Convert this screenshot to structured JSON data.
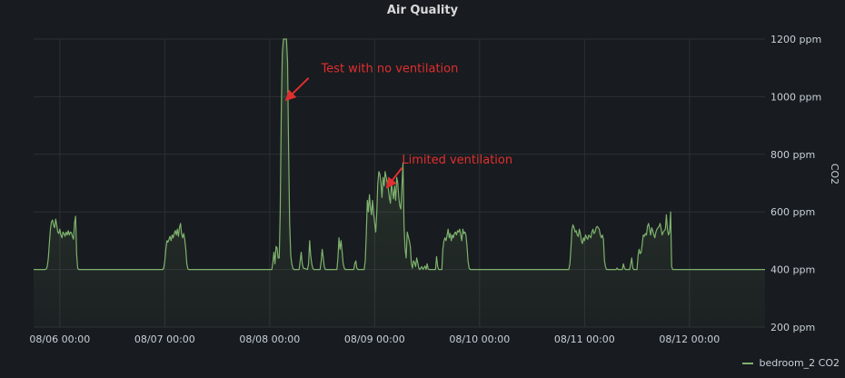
{
  "chart_data": {
    "type": "area",
    "title": "Air Quality",
    "ylabel": "CO2",
    "ylim": [
      200,
      1200
    ],
    "yticks": [
      "200 ppm",
      "400 ppm",
      "600 ppm",
      "800 ppm",
      "1000 ppm",
      "1200 ppm"
    ],
    "ytick_values": [
      200,
      400,
      600,
      800,
      1000,
      1200
    ],
    "xticks": [
      "08/06 00:00",
      "08/07 00:00",
      "08/08 00:00",
      "08/09 00:00",
      "08/10 00:00",
      "08/11 00:00",
      "08/12 00:00"
    ],
    "xtick_days": [
      0,
      1,
      2,
      3,
      4,
      5,
      6
    ],
    "xlim_days": [
      -0.25,
      6.72
    ],
    "grid": true,
    "legend_placement": "bottom-right",
    "series": [
      {
        "name": "bedroom_2 CO2",
        "color": "#7eb26d",
        "points": [
          [
            -0.25,
            400
          ],
          [
            -0.14,
            400
          ],
          [
            -0.13,
            402
          ],
          [
            -0.12,
            410
          ],
          [
            -0.11,
            440
          ],
          [
            -0.1,
            490
          ],
          [
            -0.09,
            540
          ],
          [
            -0.08,
            565
          ],
          [
            -0.07,
            572
          ],
          [
            -0.06,
            555
          ],
          [
            -0.05,
            545
          ],
          [
            -0.04,
            575
          ],
          [
            -0.03,
            555
          ],
          [
            -0.02,
            530
          ],
          [
            -0.01,
            525
          ],
          [
            0.0,
            540
          ],
          [
            0.01,
            520
          ],
          [
            0.02,
            510
          ],
          [
            0.03,
            530
          ],
          [
            0.04,
            525
          ],
          [
            0.05,
            515
          ],
          [
            0.06,
            530
          ],
          [
            0.07,
            520
          ],
          [
            0.08,
            535
          ],
          [
            0.09,
            520
          ],
          [
            0.1,
            530
          ],
          [
            0.11,
            528
          ],
          [
            0.12,
            515
          ],
          [
            0.13,
            505
          ],
          [
            0.14,
            560
          ],
          [
            0.15,
            585
          ],
          [
            0.16,
            450
          ],
          [
            0.17,
            405
          ],
          [
            0.18,
            400
          ],
          [
            0.98,
            400
          ],
          [
            0.99,
            405
          ],
          [
            1.0,
            430
          ],
          [
            1.01,
            470
          ],
          [
            1.02,
            500
          ],
          [
            1.03,
            495
          ],
          [
            1.04,
            505
          ],
          [
            1.05,
            515
          ],
          [
            1.06,
            500
          ],
          [
            1.07,
            520
          ],
          [
            1.08,
            510
          ],
          [
            1.09,
            525
          ],
          [
            1.1,
            535
          ],
          [
            1.11,
            520
          ],
          [
            1.12,
            540
          ],
          [
            1.13,
            515
          ],
          [
            1.14,
            545
          ],
          [
            1.15,
            560
          ],
          [
            1.16,
            525
          ],
          [
            1.17,
            510
          ],
          [
            1.18,
            525
          ],
          [
            1.19,
            505
          ],
          [
            1.2,
            470
          ],
          [
            1.21,
            420
          ],
          [
            1.22,
            402
          ],
          [
            1.23,
            400
          ],
          [
            2.02,
            400
          ],
          [
            2.03,
            425
          ],
          [
            2.04,
            460
          ],
          [
            2.05,
            420
          ],
          [
            2.06,
            480
          ],
          [
            2.07,
            475
          ],
          [
            2.08,
            440
          ],
          [
            2.09,
            440
          ],
          [
            2.1,
            600
          ],
          [
            2.11,
            950
          ],
          [
            2.12,
            1150
          ],
          [
            2.13,
            1250
          ],
          [
            2.16,
            1250
          ],
          [
            2.17,
            1120
          ],
          [
            2.18,
            800
          ],
          [
            2.19,
            560
          ],
          [
            2.2,
            450
          ],
          [
            2.21,
            420
          ],
          [
            2.22,
            405
          ],
          [
            2.23,
            400
          ],
          [
            2.28,
            400
          ],
          [
            2.29,
            430
          ],
          [
            2.3,
            460
          ],
          [
            2.31,
            420
          ],
          [
            2.32,
            405
          ],
          [
            2.36,
            400
          ],
          [
            2.37,
            420
          ],
          [
            2.38,
            500
          ],
          [
            2.39,
            450
          ],
          [
            2.4,
            420
          ],
          [
            2.41,
            405
          ],
          [
            2.42,
            400
          ],
          [
            2.48,
            400
          ],
          [
            2.49,
            430
          ],
          [
            2.5,
            470
          ],
          [
            2.51,
            440
          ],
          [
            2.52,
            410
          ],
          [
            2.53,
            400
          ],
          [
            2.64,
            400
          ],
          [
            2.65,
            440
          ],
          [
            2.66,
            510
          ],
          [
            2.67,
            470
          ],
          [
            2.68,
            500
          ],
          [
            2.69,
            460
          ],
          [
            2.7,
            420
          ],
          [
            2.71,
            405
          ],
          [
            2.72,
            400
          ],
          [
            2.8,
            400
          ],
          [
            2.81,
            420
          ],
          [
            2.82,
            430
          ],
          [
            2.83,
            405
          ],
          [
            2.84,
            400
          ],
          [
            2.9,
            400
          ],
          [
            2.91,
            430
          ],
          [
            2.92,
            520
          ],
          [
            2.93,
            640
          ],
          [
            2.94,
            600
          ],
          [
            2.95,
            660
          ],
          [
            2.96,
            615
          ],
          [
            2.97,
            590
          ],
          [
            2.98,
            640
          ],
          [
            2.99,
            595
          ],
          [
            3.0,
            560
          ],
          [
            3.01,
            530
          ],
          [
            3.02,
            600
          ],
          [
            3.03,
            700
          ],
          [
            3.04,
            740
          ],
          [
            3.05,
            730
          ],
          [
            3.06,
            700
          ],
          [
            3.07,
            650
          ],
          [
            3.08,
            720
          ],
          [
            3.09,
            690
          ],
          [
            3.1,
            740
          ],
          [
            3.11,
            720
          ],
          [
            3.12,
            700
          ],
          [
            3.13,
            680
          ],
          [
            3.14,
            650
          ],
          [
            3.15,
            630
          ],
          [
            3.16,
            700
          ],
          [
            3.17,
            670
          ],
          [
            3.18,
            645
          ],
          [
            3.19,
            690
          ],
          [
            3.2,
            640
          ],
          [
            3.21,
            720
          ],
          [
            3.22,
            700
          ],
          [
            3.23,
            650
          ],
          [
            3.24,
            620
          ],
          [
            3.25,
            610
          ],
          [
            3.26,
            690
          ],
          [
            3.27,
            770
          ],
          [
            3.28,
            550
          ],
          [
            3.29,
            470
          ],
          [
            3.3,
            440
          ],
          [
            3.31,
            530
          ],
          [
            3.32,
            515
          ],
          [
            3.33,
            500
          ],
          [
            3.34,
            480
          ],
          [
            3.35,
            420
          ],
          [
            3.36,
            405
          ],
          [
            3.37,
            430
          ],
          [
            3.38,
            425
          ],
          [
            3.39,
            410
          ],
          [
            3.4,
            440
          ],
          [
            3.41,
            425
          ],
          [
            3.42,
            405
          ],
          [
            3.43,
            400
          ],
          [
            3.45,
            410
          ],
          [
            3.46,
            400
          ],
          [
            3.48,
            412
          ],
          [
            3.49,
            400
          ],
          [
            3.5,
            420
          ],
          [
            3.51,
            402
          ],
          [
            3.52,
            400
          ],
          [
            3.58,
            400
          ],
          [
            3.59,
            445
          ],
          [
            3.6,
            410
          ],
          [
            3.61,
            400
          ],
          [
            3.64,
            400
          ],
          [
            3.65,
            470
          ],
          [
            3.66,
            500
          ],
          [
            3.67,
            510
          ],
          [
            3.68,
            500
          ],
          [
            3.69,
            520
          ],
          [
            3.7,
            540
          ],
          [
            3.71,
            510
          ],
          [
            3.72,
            525
          ],
          [
            3.73,
            500
          ],
          [
            3.74,
            520
          ],
          [
            3.75,
            510
          ],
          [
            3.76,
            525
          ],
          [
            3.77,
            530
          ],
          [
            3.78,
            520
          ],
          [
            3.79,
            535
          ],
          [
            3.8,
            530
          ],
          [
            3.81,
            540
          ],
          [
            3.82,
            520
          ],
          [
            3.83,
            500
          ],
          [
            3.84,
            540
          ],
          [
            3.85,
            525
          ],
          [
            3.86,
            530
          ],
          [
            3.87,
            520
          ],
          [
            3.88,
            480
          ],
          [
            3.89,
            430
          ],
          [
            3.9,
            405
          ],
          [
            3.91,
            400
          ],
          [
            4.85,
            400
          ],
          [
            4.86,
            420
          ],
          [
            4.87,
            470
          ],
          [
            4.88,
            540
          ],
          [
            4.89,
            555
          ],
          [
            4.9,
            545
          ],
          [
            4.91,
            530
          ],
          [
            4.92,
            535
          ],
          [
            4.93,
            520
          ],
          [
            4.94,
            515
          ],
          [
            4.95,
            540
          ],
          [
            4.96,
            525
          ],
          [
            4.97,
            500
          ],
          [
            4.98,
            490
          ],
          [
            4.99,
            510
          ],
          [
            5.0,
            500
          ],
          [
            5.01,
            520
          ],
          [
            5.02,
            510
          ],
          [
            5.03,
            505
          ],
          [
            5.04,
            520
          ],
          [
            5.05,
            515
          ],
          [
            5.06,
            510
          ],
          [
            5.07,
            530
          ],
          [
            5.08,
            540
          ],
          [
            5.09,
            525
          ],
          [
            5.1,
            530
          ],
          [
            5.11,
            545
          ],
          [
            5.12,
            550
          ],
          [
            5.13,
            545
          ],
          [
            5.14,
            540
          ],
          [
            5.15,
            520
          ],
          [
            5.16,
            510
          ],
          [
            5.17,
            520
          ],
          [
            5.18,
            505
          ],
          [
            5.19,
            430
          ],
          [
            5.2,
            410
          ],
          [
            5.21,
            400
          ],
          [
            5.3,
            400
          ],
          [
            5.31,
            405
          ],
          [
            5.32,
            400
          ],
          [
            5.36,
            400
          ],
          [
            5.37,
            420
          ],
          [
            5.38,
            405
          ],
          [
            5.39,
            400
          ],
          [
            5.43,
            400
          ],
          [
            5.44,
            420
          ],
          [
            5.45,
            440
          ],
          [
            5.46,
            405
          ],
          [
            5.47,
            400
          ],
          [
            5.5,
            400
          ],
          [
            5.51,
            450
          ],
          [
            5.52,
            470
          ],
          [
            5.53,
            455
          ],
          [
            5.54,
            460
          ],
          [
            5.55,
            490
          ],
          [
            5.56,
            520
          ],
          [
            5.57,
            515
          ],
          [
            5.58,
            525
          ],
          [
            5.59,
            520
          ],
          [
            5.6,
            550
          ],
          [
            5.61,
            560
          ],
          [
            5.62,
            540
          ],
          [
            5.63,
            520
          ],
          [
            5.64,
            545
          ],
          [
            5.65,
            535
          ],
          [
            5.66,
            520
          ],
          [
            5.67,
            510
          ],
          [
            5.68,
            530
          ],
          [
            5.69,
            540
          ],
          [
            5.7,
            545
          ],
          [
            5.71,
            550
          ],
          [
            5.72,
            560
          ],
          [
            5.73,
            540
          ],
          [
            5.74,
            520
          ],
          [
            5.75,
            530
          ],
          [
            5.76,
            535
          ],
          [
            5.77,
            540
          ],
          [
            5.78,
            590
          ],
          [
            5.79,
            540
          ],
          [
            5.8,
            520
          ],
          [
            5.81,
            530
          ],
          [
            5.82,
            600
          ],
          [
            5.83,
            410
          ],
          [
            5.84,
            400
          ],
          [
            6.72,
            400
          ]
        ]
      }
    ],
    "annotations": [
      {
        "text": "Test with no ventilation",
        "x": 2.49,
        "y": 1085,
        "arrow_from": [
          2.37,
          1065
        ],
        "arrow_to": [
          2.16,
          990
        ]
      },
      {
        "text": "Limited ventilation",
        "x": 3.26,
        "y": 768,
        "arrow_from": [
          3.26,
          753
        ],
        "arrow_to": [
          3.12,
          687
        ]
      }
    ]
  },
  "legend": {
    "label": "bedroom_2 CO2"
  }
}
